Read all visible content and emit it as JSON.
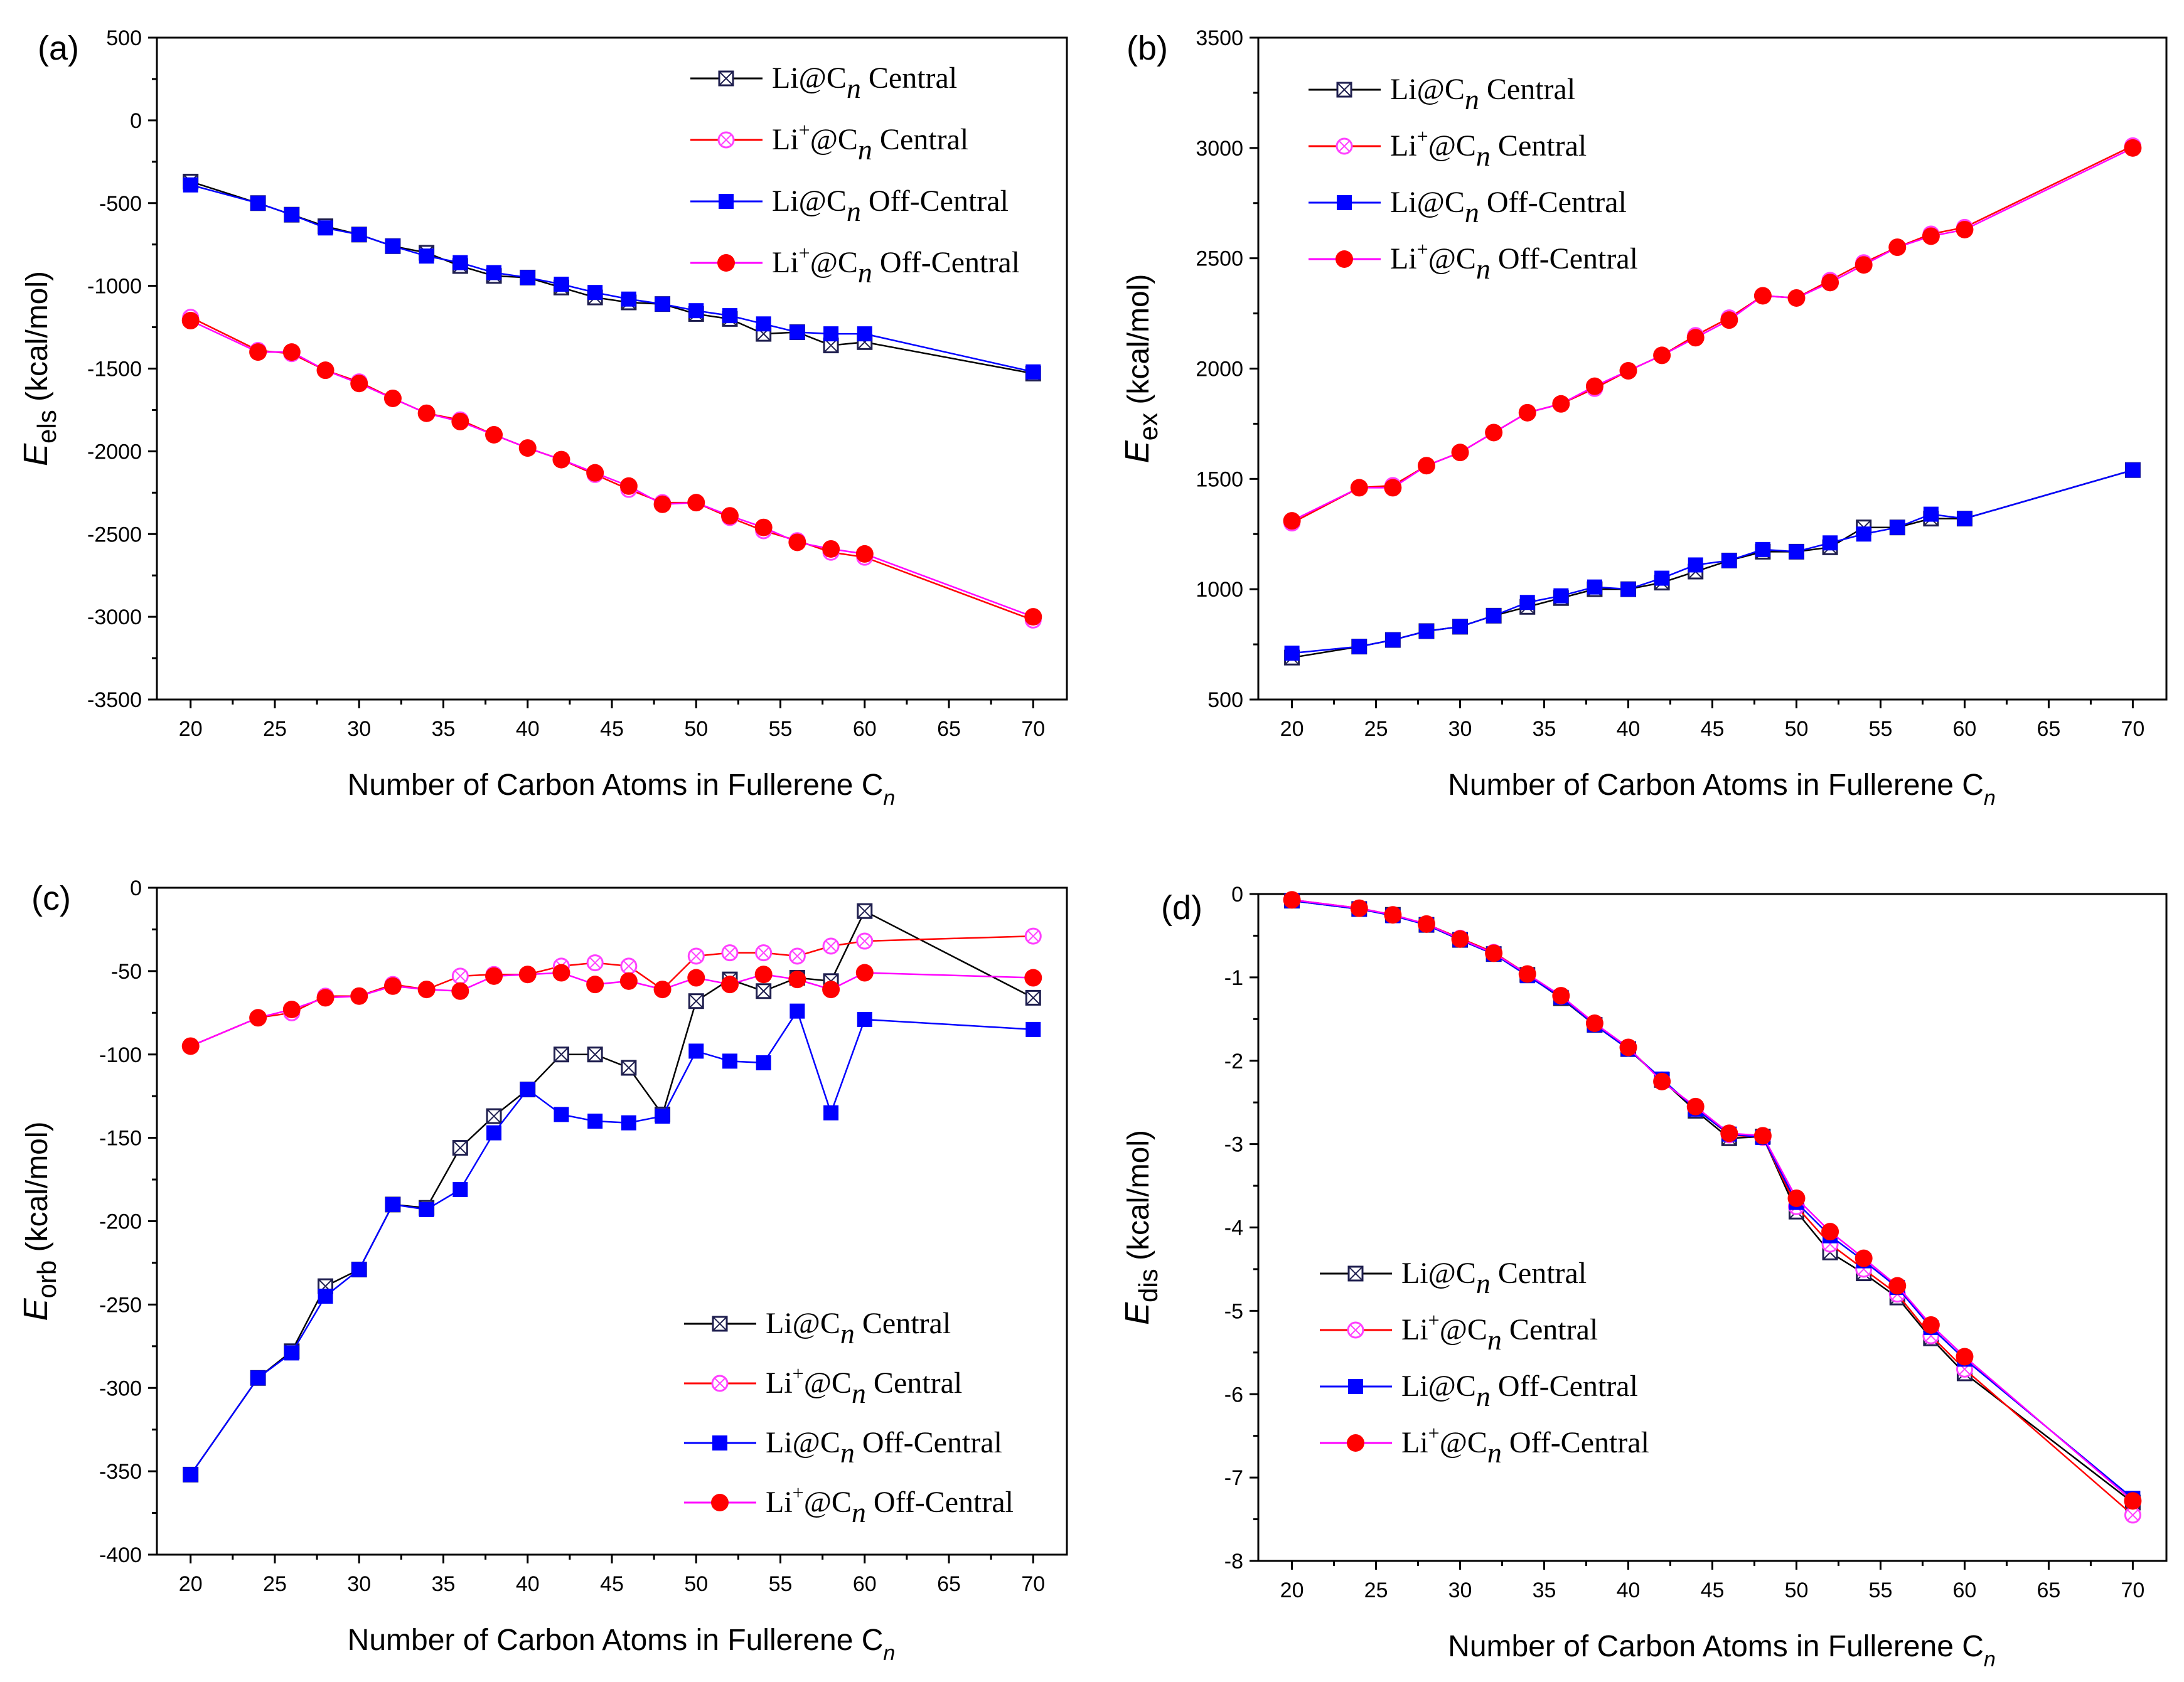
{
  "colors": {
    "central_neutral": "#1f1f4f",
    "central_ion": "#ff40ff",
    "offcentral_neutral": "#0000ff",
    "offcentral_ion": "#ff0000",
    "line_central_ion": "#ff0000",
    "line_offcentral_ion": "#ff00ff"
  },
  "legend_parts": {
    "neutral_prefix": "Li@C",
    "ion_prefix": "Li",
    "ion_sup": "+",
    "ion_at": "@C",
    "subscript": "n",
    "central": "Central",
    "off_central": "Off-Central"
  },
  "x_label_main": "Number of Carbon Atoms in Fullerene C",
  "x_label_sub": "n",
  "chart_data": [
    {
      "type": "line",
      "panel": "(a)",
      "ylabel_main": "E",
      "ylabel_sub": "els",
      "ylabel_unit": "(kcal/mol)",
      "ylim": [
        -3500,
        500
      ],
      "yticks": [
        "500",
        "0",
        "-500",
        "-1000",
        "-1500",
        "-2000",
        "-2500",
        "-3000",
        "-3500"
      ],
      "xlim": [
        18,
        72
      ],
      "xticks": [
        "20",
        "25",
        "30",
        "35",
        "40",
        "45",
        "50",
        "55",
        "60",
        "65",
        "70"
      ],
      "legend_position": "top-right",
      "x": [
        20,
        24,
        26,
        28,
        30,
        32,
        34,
        36,
        38,
        40,
        42,
        44,
        46,
        48,
        50,
        52,
        54,
        56,
        58,
        60,
        70
      ],
      "series": [
        {
          "name": "Li@Cn Central",
          "values": [
            -370,
            -500,
            -570,
            -640,
            -690,
            -760,
            -800,
            -880,
            -940,
            -950,
            -1010,
            -1070,
            -1100,
            -1110,
            -1170,
            -1200,
            -1290,
            -1280,
            -1360,
            -1340,
            -1530
          ]
        },
        {
          "name": "Li+@Cn Central",
          "values": [
            -1190,
            -1390,
            -1410,
            -1510,
            -1580,
            -1680,
            -1770,
            -1810,
            -1900,
            -1980,
            -2050,
            -2140,
            -2230,
            -2310,
            -2310,
            -2400,
            -2480,
            -2540,
            -2610,
            -2640,
            -3020
          ]
        },
        {
          "name": "Li@Cn Off-Central",
          "values": [
            -390,
            -500,
            -570,
            -650,
            -690,
            -760,
            -820,
            -860,
            -920,
            -950,
            -990,
            -1040,
            -1080,
            -1110,
            -1150,
            -1180,
            -1230,
            -1280,
            -1290,
            -1290,
            -1520
          ]
        },
        {
          "name": "Li+@Cn Off-Central",
          "values": [
            -1210,
            -1400,
            -1400,
            -1510,
            -1590,
            -1680,
            -1770,
            -1820,
            -1900,
            -1980,
            -2050,
            -2130,
            -2210,
            -2320,
            -2310,
            -2390,
            -2460,
            -2550,
            -2590,
            -2620,
            -3000
          ]
        }
      ]
    },
    {
      "type": "line",
      "panel": "(b)",
      "ylabel_main": "E",
      "ylabel_sub": "ex",
      "ylabel_unit": "(kcal/mol)",
      "ylim": [
        500,
        3500
      ],
      "yticks": [
        "3500",
        "3000",
        "2500",
        "2000",
        "1500",
        "1000",
        "500"
      ],
      "xlim": [
        18,
        72
      ],
      "xticks": [
        "20",
        "25",
        "30",
        "35",
        "40",
        "45",
        "50",
        "55",
        "60",
        "65",
        "70"
      ],
      "legend_position": "top-left",
      "x": [
        20,
        24,
        26,
        28,
        30,
        32,
        34,
        36,
        38,
        40,
        42,
        44,
        46,
        48,
        50,
        52,
        54,
        56,
        58,
        60,
        70
      ],
      "series": [
        {
          "name": "Li@Cn Central",
          "values": [
            690,
            740,
            770,
            810,
            830,
            880,
            920,
            960,
            1000,
            1000,
            1030,
            1080,
            1130,
            1170,
            1170,
            1190,
            1280,
            1280,
            1320,
            1320,
            1540
          ]
        },
        {
          "name": "Li+@Cn Central",
          "values": [
            1300,
            1460,
            1470,
            1560,
            1620,
            1710,
            1800,
            1840,
            1910,
            1990,
            2060,
            2150,
            2230,
            2330,
            2320,
            2400,
            2480,
            2550,
            2610,
            2640,
            3010
          ]
        },
        {
          "name": "Li@Cn Off-Central",
          "values": [
            710,
            740,
            770,
            810,
            830,
            880,
            940,
            970,
            1010,
            1000,
            1050,
            1110,
            1130,
            1180,
            1170,
            1210,
            1250,
            1280,
            1340,
            1320,
            1540
          ]
        },
        {
          "name": "Li+@Cn Off-Central",
          "values": [
            1310,
            1460,
            1460,
            1560,
            1620,
            1710,
            1800,
            1840,
            1920,
            1990,
            2060,
            2140,
            2220,
            2330,
            2320,
            2390,
            2470,
            2550,
            2600,
            2630,
            3000
          ]
        }
      ]
    },
    {
      "type": "line",
      "panel": "(c)",
      "ylabel_main": "E",
      "ylabel_sub": "orb",
      "ylabel_unit": "(kcal/mol)",
      "ylim": [
        -400,
        0
      ],
      "yticks": [
        "0",
        "-50",
        "-100",
        "-150",
        "-200",
        "-250",
        "-300",
        "-350",
        "-400"
      ],
      "xlim": [
        18,
        72
      ],
      "xticks": [
        "20",
        "25",
        "30",
        "35",
        "40",
        "45",
        "50",
        "55",
        "60",
        "65",
        "70"
      ],
      "legend_position": "bottom-right",
      "x": [
        20,
        24,
        26,
        28,
        30,
        32,
        34,
        36,
        38,
        40,
        42,
        44,
        46,
        48,
        50,
        52,
        54,
        56,
        58,
        60,
        70
      ],
      "series": [
        {
          "name": "Li@Cn Central",
          "values": [
            -352,
            -294,
            -278,
            -239,
            -229,
            -190,
            -192,
            -156,
            -137,
            -121,
            -100,
            -100,
            -108,
            -136,
            -68,
            -55,
            -62,
            -54,
            -56,
            -14,
            -66
          ]
        },
        {
          "name": "Li+@Cn Central",
          "values": [
            -95,
            -78,
            -75,
            -65,
            -65,
            -58,
            -61,
            -53,
            -52,
            -52,
            -47,
            -45,
            -47,
            -61,
            -41,
            -39,
            -39,
            -41,
            -35,
            -32,
            -29
          ]
        },
        {
          "name": "Li@Cn Off-Central",
          "values": [
            -352,
            -294,
            -279,
            -245,
            -229,
            -190,
            -193,
            -181,
            -147,
            -121,
            -136,
            -140,
            -141,
            -137,
            -98,
            -104,
            -105,
            -74,
            -135,
            -79,
            -85
          ]
        },
        {
          "name": "Li+@Cn Off-Central",
          "values": [
            -95,
            -78,
            -73,
            -66,
            -65,
            -59,
            -61,
            -62,
            -53,
            -52,
            -51,
            -58,
            -56,
            -61,
            -54,
            -58,
            -52,
            -55,
            -61,
            -51,
            -54
          ]
        }
      ]
    },
    {
      "type": "line",
      "panel": "(d)",
      "ylabel_main": "E",
      "ylabel_sub": "dis",
      "ylabel_unit": "(kcal/mol)",
      "ylim": [
        -8,
        0
      ],
      "yticks": [
        "0",
        "-1",
        "-2",
        "-3",
        "-4",
        "-5",
        "-6",
        "-7",
        "-8"
      ],
      "xlim": [
        18,
        72
      ],
      "xticks": [
        "20",
        "25",
        "30",
        "35",
        "40",
        "45",
        "50",
        "55",
        "60",
        "65",
        "70"
      ],
      "legend_position": "bottom-left",
      "x": [
        20,
        24,
        26,
        28,
        30,
        32,
        34,
        36,
        38,
        40,
        42,
        44,
        46,
        48,
        50,
        52,
        54,
        56,
        58,
        60,
        70
      ],
      "series": [
        {
          "name": "Li@Cn Central",
          "values": [
            -0.08,
            -0.18,
            -0.25,
            -0.37,
            -0.55,
            -0.72,
            -0.97,
            -1.25,
            -1.57,
            -1.86,
            -2.23,
            -2.6,
            -2.93,
            -2.91,
            -3.81,
            -4.3,
            -4.55,
            -4.84,
            -5.33,
            -5.75,
            -7.3
          ]
        },
        {
          "name": "Li+@Cn Central",
          "values": [
            -0.07,
            -0.17,
            -0.25,
            -0.36,
            -0.53,
            -0.7,
            -0.96,
            -1.23,
            -1.55,
            -1.85,
            -2.23,
            -2.57,
            -2.89,
            -2.92,
            -3.75,
            -4.2,
            -4.5,
            -4.8,
            -5.3,
            -5.7,
            -7.45
          ]
        },
        {
          "name": "Li@Cn Off-Central",
          "values": [
            -0.08,
            -0.18,
            -0.26,
            -0.37,
            -0.55,
            -0.72,
            -0.98,
            -1.24,
            -1.57,
            -1.86,
            -2.22,
            -2.58,
            -2.88,
            -2.92,
            -3.7,
            -4.1,
            -4.4,
            -4.72,
            -5.2,
            -5.58,
            -7.25
          ]
        },
        {
          "name": "Li+@Cn Off-Central",
          "values": [
            -0.07,
            -0.17,
            -0.25,
            -0.36,
            -0.54,
            -0.71,
            -0.96,
            -1.22,
            -1.55,
            -1.84,
            -2.25,
            -2.55,
            -2.87,
            -2.9,
            -3.65,
            -4.05,
            -4.37,
            -4.7,
            -5.17,
            -5.55,
            -7.28
          ]
        }
      ]
    }
  ]
}
